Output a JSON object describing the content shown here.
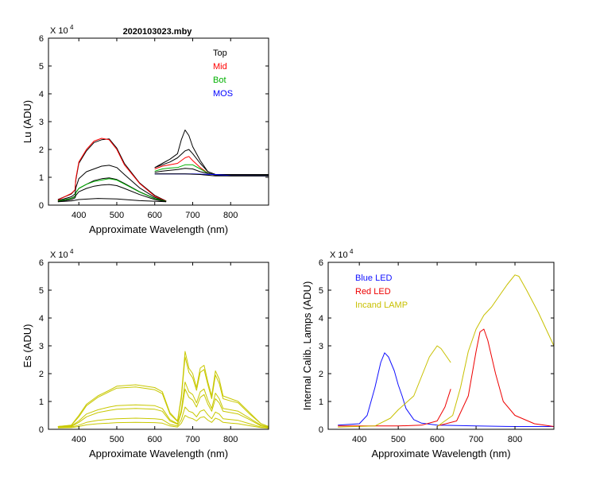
{
  "figure_title": "2020103023.mby",
  "colors": {
    "top": "#000000",
    "mid": "#ff0000",
    "bot": "#00b000",
    "mos": "#0000ff",
    "es": "#c8c800",
    "blue_led": "#1010ff",
    "red_led": "#ee0000",
    "incand": "#c8c000"
  },
  "chart_data": [
    {
      "type": "line",
      "id": "lu",
      "title": "2020103023.mby",
      "xlabel": "Approximate Wavelength (nm)",
      "ylabel": "Lu (ADU)",
      "multiplier_label": "X 10",
      "multiplier_exp": "4",
      "xlim": [
        320,
        900
      ],
      "ylim": [
        0,
        6
      ],
      "xticks": [
        "400",
        "500",
        "600",
        "700",
        "800"
      ],
      "yticks": [
        "0",
        "1",
        "2",
        "3",
        "4",
        "5",
        "6"
      ],
      "legend": [
        {
          "label": "Top",
          "color": "#000000"
        },
        {
          "label": "Mid",
          "color": "#ff0000"
        },
        {
          "label": "Bot",
          "color": "#00b000"
        },
        {
          "label": "MOS",
          "color": "#0000ff"
        }
      ],
      "series": [
        {
          "name": "Top-1",
          "color": "#000000",
          "x": [
            345,
            380,
            390,
            392,
            400,
            420,
            440,
            460,
            480,
            500,
            520,
            560,
            600,
            630
          ],
          "y": [
            0.2,
            0.4,
            0.55,
            0.9,
            1.5,
            1.95,
            2.25,
            2.35,
            2.38,
            2.05,
            1.5,
            0.8,
            0.35,
            0.15
          ]
        },
        {
          "name": "Mid-1",
          "color": "#ff0000",
          "x": [
            345,
            380,
            390,
            392,
            400,
            420,
            440,
            460,
            480,
            500,
            520,
            560,
            600,
            630
          ],
          "y": [
            0.18,
            0.42,
            0.55,
            0.95,
            1.55,
            2.0,
            2.3,
            2.4,
            2.35,
            2.0,
            1.45,
            0.78,
            0.32,
            0.15
          ]
        },
        {
          "name": "Top-2",
          "color": "#000000",
          "x": [
            345,
            380,
            390,
            392,
            400,
            420,
            440,
            460,
            480,
            500,
            520,
            560,
            600,
            630
          ],
          "y": [
            0.16,
            0.3,
            0.4,
            0.62,
            0.95,
            1.2,
            1.3,
            1.4,
            1.43,
            1.35,
            1.1,
            0.62,
            0.28,
            0.14
          ]
        },
        {
          "name": "Top-3",
          "color": "#000000",
          "x": [
            345,
            380,
            390,
            392,
            400,
            420,
            440,
            460,
            480,
            500,
            520,
            560,
            600,
            630
          ],
          "y": [
            0.14,
            0.25,
            0.32,
            0.45,
            0.6,
            0.75,
            0.88,
            0.95,
            0.98,
            0.92,
            0.78,
            0.48,
            0.24,
            0.13
          ]
        },
        {
          "name": "Bot-1",
          "color": "#00b000",
          "x": [
            345,
            380,
            390,
            392,
            400,
            420,
            440,
            460,
            480,
            500,
            520,
            560,
            600,
            630
          ],
          "y": [
            0.14,
            0.24,
            0.3,
            0.44,
            0.6,
            0.75,
            0.85,
            0.9,
            0.95,
            0.9,
            0.76,
            0.47,
            0.23,
            0.13
          ]
        },
        {
          "name": "Top-4",
          "color": "#000000",
          "x": [
            345,
            380,
            390,
            392,
            400,
            420,
            440,
            460,
            480,
            500,
            520,
            560,
            600,
            630
          ],
          "y": [
            0.12,
            0.2,
            0.26,
            0.35,
            0.48,
            0.6,
            0.68,
            0.72,
            0.74,
            0.7,
            0.6,
            0.38,
            0.2,
            0.12
          ]
        },
        {
          "name": "Top-5",
          "color": "#000000",
          "x": [
            345,
            380,
            400,
            450,
            500,
            560,
            630
          ],
          "y": [
            0.12,
            0.15,
            0.2,
            0.24,
            0.22,
            0.16,
            0.12
          ]
        },
        {
          "name": "Top-6",
          "color": "#000000",
          "x": [
            600,
            620,
            640,
            660,
            670,
            680,
            690,
            700,
            720,
            740,
            760,
            800,
            900
          ],
          "y": [
            1.35,
            1.5,
            1.65,
            1.85,
            2.35,
            2.7,
            2.5,
            2.1,
            1.6,
            1.2,
            1.1,
            1.1,
            1.1
          ]
        },
        {
          "name": "Top-7",
          "color": "#000000",
          "x": [
            600,
            620,
            640,
            660,
            680,
            690,
            700,
            720,
            740,
            760,
            800,
            900
          ],
          "y": [
            1.35,
            1.45,
            1.55,
            1.7,
            1.95,
            2.0,
            1.85,
            1.5,
            1.2,
            1.1,
            1.08,
            1.08
          ]
        },
        {
          "name": "Mid-2",
          "color": "#ff0000",
          "x": [
            600,
            620,
            640,
            660,
            680,
            690,
            700,
            720,
            740,
            760,
            800,
            900
          ],
          "y": [
            1.3,
            1.4,
            1.45,
            1.5,
            1.7,
            1.75,
            1.6,
            1.35,
            1.15,
            1.08,
            1.06,
            1.06
          ]
        },
        {
          "name": "Bot-2",
          "color": "#00b000",
          "x": [
            600,
            620,
            640,
            660,
            680,
            700,
            720,
            740,
            760,
            800,
            900
          ],
          "y": [
            1.22,
            1.3,
            1.33,
            1.35,
            1.45,
            1.45,
            1.3,
            1.15,
            1.08,
            1.06,
            1.06
          ]
        },
        {
          "name": "Top-8",
          "color": "#000000",
          "x": [
            600,
            620,
            640,
            660,
            680,
            700,
            720,
            760,
            800,
            900
          ],
          "y": [
            1.18,
            1.22,
            1.25,
            1.28,
            1.32,
            1.3,
            1.2,
            1.08,
            1.05,
            1.05
          ]
        },
        {
          "name": "MOS",
          "color": "#0000ff",
          "x": [
            600,
            650,
            700,
            760,
            800,
            900
          ],
          "y": [
            1.12,
            1.12,
            1.12,
            1.1,
            1.06,
            1.05
          ]
        },
        {
          "name": "Top-9",
          "color": "#000000",
          "x": [
            600,
            640,
            680,
            720,
            760,
            800,
            900
          ],
          "y": [
            1.12,
            1.12,
            1.12,
            1.1,
            1.05,
            1.05,
            1.05
          ]
        }
      ]
    },
    {
      "type": "line",
      "id": "es",
      "title": "",
      "xlabel": "Approximate Wavelength (nm)",
      "ylabel": "Es  (ADU)",
      "multiplier_label": "X 10",
      "multiplier_exp": "4",
      "xlim": [
        320,
        900
      ],
      "ylim": [
        0,
        6
      ],
      "xticks": [
        "400",
        "500",
        "600",
        "700",
        "800"
      ],
      "yticks": [
        "0",
        "1",
        "2",
        "3",
        "4",
        "5",
        "6"
      ],
      "series": [
        {
          "name": "Es-1",
          "color": "#c8c800",
          "x": [
            345,
            380,
            400,
            420,
            450,
            480,
            500,
            550,
            600,
            620,
            640,
            660,
            670,
            680,
            690,
            700,
            710,
            720,
            730,
            740,
            750,
            760,
            770,
            780,
            800,
            820,
            850,
            880,
            900
          ],
          "y": [
            0.1,
            0.15,
            0.5,
            0.9,
            1.2,
            1.4,
            1.55,
            1.6,
            1.5,
            1.35,
            0.6,
            0.3,
            1.2,
            2.8,
            2.2,
            2.0,
            1.5,
            2.2,
            2.3,
            1.7,
            1.2,
            2.1,
            1.8,
            1.2,
            1.1,
            1.0,
            0.6,
            0.2,
            0.1
          ]
        },
        {
          "name": "Es-2",
          "color": "#c8c800",
          "x": [
            345,
            380,
            400,
            420,
            450,
            480,
            500,
            550,
            600,
            620,
            640,
            660,
            670,
            680,
            690,
            700,
            710,
            720,
            730,
            740,
            750,
            760,
            770,
            780,
            800,
            820,
            850,
            880,
            900
          ],
          "y": [
            0.1,
            0.14,
            0.45,
            0.85,
            1.15,
            1.35,
            1.48,
            1.52,
            1.42,
            1.28,
            0.55,
            0.28,
            1.1,
            2.6,
            2.05,
            1.85,
            1.4,
            2.05,
            2.15,
            1.6,
            1.1,
            1.95,
            1.65,
            1.1,
            1.02,
            0.95,
            0.55,
            0.2,
            0.1
          ]
        },
        {
          "name": "Es-3",
          "color": "#c8c800",
          "x": [
            345,
            380,
            400,
            420,
            450,
            480,
            500,
            550,
            600,
            620,
            640,
            660,
            670,
            680,
            690,
            700,
            710,
            720,
            730,
            740,
            750,
            760,
            770,
            780,
            800,
            820,
            850,
            880,
            900
          ],
          "y": [
            0.1,
            0.12,
            0.3,
            0.55,
            0.7,
            0.8,
            0.85,
            0.88,
            0.85,
            0.75,
            0.35,
            0.2,
            0.7,
            1.7,
            1.35,
            1.25,
            0.95,
            1.35,
            1.45,
            1.05,
            0.75,
            1.3,
            1.1,
            0.75,
            0.7,
            0.65,
            0.4,
            0.15,
            0.08
          ]
        },
        {
          "name": "Es-4",
          "color": "#c8c800",
          "x": [
            345,
            380,
            400,
            420,
            450,
            480,
            500,
            550,
            600,
            620,
            640,
            660,
            670,
            680,
            690,
            700,
            710,
            720,
            730,
            740,
            750,
            760,
            770,
            780,
            800,
            820,
            850,
            880,
            900
          ],
          "y": [
            0.08,
            0.1,
            0.25,
            0.45,
            0.6,
            0.68,
            0.72,
            0.75,
            0.72,
            0.65,
            0.3,
            0.18,
            0.6,
            1.45,
            1.15,
            1.05,
            0.8,
            1.15,
            1.25,
            0.9,
            0.65,
            1.1,
            0.95,
            0.65,
            0.6,
            0.55,
            0.35,
            0.12,
            0.07
          ]
        },
        {
          "name": "Es-5",
          "color": "#c8c800",
          "x": [
            345,
            380,
            400,
            420,
            450,
            480,
            500,
            550,
            600,
            620,
            640,
            660,
            670,
            680,
            690,
            700,
            710,
            720,
            730,
            740,
            750,
            760,
            770,
            780,
            800,
            820,
            850,
            880,
            900
          ],
          "y": [
            0.06,
            0.08,
            0.15,
            0.25,
            0.32,
            0.36,
            0.38,
            0.4,
            0.38,
            0.35,
            0.18,
            0.12,
            0.35,
            0.8,
            0.65,
            0.6,
            0.45,
            0.65,
            0.7,
            0.52,
            0.38,
            0.62,
            0.55,
            0.38,
            0.35,
            0.32,
            0.2,
            0.08,
            0.05
          ]
        },
        {
          "name": "Es-6",
          "color": "#c8c800",
          "x": [
            345,
            380,
            400,
            420,
            450,
            480,
            500,
            550,
            600,
            620,
            640,
            660,
            670,
            680,
            690,
            700,
            710,
            720,
            730,
            740,
            750,
            760,
            770,
            780,
            800,
            820,
            850,
            880,
            900
          ],
          "y": [
            0.05,
            0.06,
            0.1,
            0.16,
            0.2,
            0.22,
            0.24,
            0.25,
            0.24,
            0.22,
            0.12,
            0.08,
            0.22,
            0.5,
            0.42,
            0.38,
            0.3,
            0.42,
            0.45,
            0.33,
            0.25,
            0.4,
            0.35,
            0.25,
            0.22,
            0.2,
            0.13,
            0.06,
            0.04
          ]
        }
      ]
    },
    {
      "type": "line",
      "id": "cal",
      "title": "",
      "xlabel": "Approximate Wavelength (nm)",
      "ylabel": "Internal Calib. Lamps  (ADU)",
      "multiplier_label": "X 10",
      "multiplier_exp": "4",
      "xlim": [
        320,
        900
      ],
      "ylim": [
        0,
        6
      ],
      "xticks": [
        "400",
        "500",
        "600",
        "700",
        "800"
      ],
      "yticks": [
        "0",
        "1",
        "2",
        "3",
        "4",
        "5",
        "6"
      ],
      "legend": [
        {
          "label": "Blue LED",
          "color": "#1010ff"
        },
        {
          "label": "Red LED",
          "color": "#ee0000"
        },
        {
          "label": "Incand LAMP",
          "color": "#c8c000"
        }
      ],
      "series": [
        {
          "name": "Blue LED",
          "color": "#1010ff",
          "x": [
            345,
            400,
            420,
            440,
            455,
            465,
            475,
            490,
            500,
            510,
            520,
            540,
            560,
            600,
            700,
            800,
            900
          ],
          "y": [
            0.15,
            0.2,
            0.5,
            1.5,
            2.4,
            2.75,
            2.6,
            2.1,
            1.6,
            1.2,
            0.75,
            0.35,
            0.22,
            0.15,
            0.12,
            0.1,
            0.1
          ]
        },
        {
          "name": "Red LED",
          "color": "#ee0000",
          "x": [
            345,
            500,
            560,
            600,
            620,
            635
          ],
          "y": [
            0.12,
            0.12,
            0.15,
            0.3,
            0.8,
            1.45
          ]
        },
        {
          "name": "Red LED 2",
          "color": "#ee0000",
          "x": [
            600,
            650,
            680,
            700,
            710,
            720,
            730,
            750,
            770,
            800,
            850,
            900
          ],
          "y": [
            0.12,
            0.3,
            1.2,
            2.8,
            3.5,
            3.6,
            3.2,
            2.0,
            1.0,
            0.5,
            0.2,
            0.1
          ]
        },
        {
          "name": "Incand LAMP",
          "color": "#c8c000",
          "x": [
            345,
            440,
            480,
            500,
            520,
            540,
            560,
            580,
            600,
            610,
            620,
            635
          ],
          "y": [
            0.08,
            0.12,
            0.4,
            0.7,
            0.95,
            1.2,
            1.9,
            2.6,
            3.0,
            2.9,
            2.7,
            2.4
          ]
        },
        {
          "name": "Incand LAMP 2",
          "color": "#c8c000",
          "x": [
            600,
            640,
            660,
            680,
            700,
            720,
            740,
            760,
            780,
            800,
            810,
            830,
            860,
            900
          ],
          "y": [
            0.1,
            0.5,
            1.5,
            2.8,
            3.6,
            4.1,
            4.4,
            4.8,
            5.2,
            5.55,
            5.5,
            5.0,
            4.2,
            3.0
          ]
        }
      ]
    }
  ]
}
